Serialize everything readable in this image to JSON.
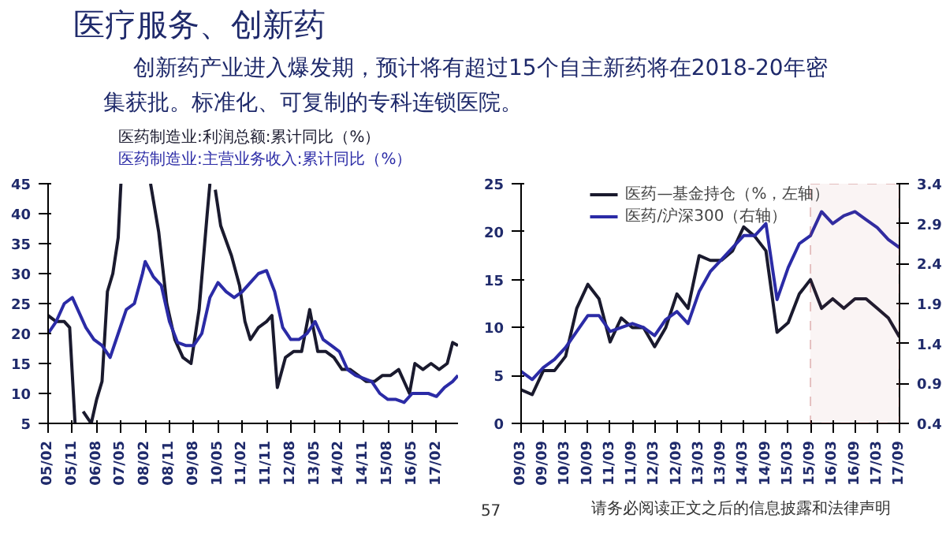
{
  "chart_data": [
    {
      "type": "other",
      "title": "医疗服务、创新药",
      "annotations": [
        "创新药产业进入爆发期，预计将有超过15个自主新药将在2018-20年密集获批。标准化、可复制的专科连锁医院。"
      ]
    },
    {
      "type": "line",
      "legend": "top",
      "grid": false,
      "ylim": [
        5,
        45
      ],
      "yticks": [
        5,
        10,
        15,
        20,
        25,
        30,
        35,
        40,
        45
      ],
      "xlim": [
        "2005-02",
        "2017-10"
      ],
      "xticks": [
        {
          "value": "2005-02",
          "label": "05/02"
        },
        {
          "value": "2005-11",
          "label": "05/11"
        },
        {
          "value": "2006-08",
          "label": "06/08"
        },
        {
          "value": "2007-05",
          "label": "07/05"
        },
        {
          "value": "2008-02",
          "label": "08/02"
        },
        {
          "value": "2008-11",
          "label": "08/11"
        },
        {
          "value": "2009-08",
          "label": "09/08"
        },
        {
          "value": "2010-05",
          "label": "10/05"
        },
        {
          "value": "2011-02",
          "label": "11/02"
        },
        {
          "value": "2011-11",
          "label": "11/11"
        },
        {
          "value": "2012-08",
          "label": "12/08"
        },
        {
          "value": "2013-05",
          "label": "13/05"
        },
        {
          "value": "2014-02",
          "label": "14/02"
        },
        {
          "value": "2014-11",
          "label": "14/11"
        },
        {
          "value": "2015-08",
          "label": "15/08"
        },
        {
          "value": "2016-05",
          "label": "16/05"
        },
        {
          "value": "2017-02",
          "label": "17/02"
        }
      ],
      "series": [
        {
          "name": "医药制造业:利润总额:累计同比（%）",
          "color": "#1a1a2e",
          "x": [
            "2005-02",
            "2005-05",
            "2005-08",
            "2005-10",
            "2005-12",
            "2006-01",
            "2006-03",
            "2006-06",
            "2006-08",
            "2006-10",
            "2006-12",
            "2007-02",
            "2007-04",
            "2007-05",
            "2007-06",
            "2008-03",
            "2008-04",
            "2008-07",
            "2008-10",
            "2009-01",
            "2009-04",
            "2009-07",
            "2009-10",
            "2010-01",
            "2010-02",
            "2010-03",
            "2010-04",
            "2010-06",
            "2010-10",
            "2011-01",
            "2011-03",
            "2011-05",
            "2011-08",
            "2011-11",
            "2012-01",
            "2012-03",
            "2012-06",
            "2012-09",
            "2012-12",
            "2013-03",
            "2013-06",
            "2013-09",
            "2013-12",
            "2014-03",
            "2014-06",
            "2014-09",
            "2014-12",
            "2015-03",
            "2015-06",
            "2015-09",
            "2015-12",
            "2016-04",
            "2016-06",
            "2016-09",
            "2016-12",
            "2017-03",
            "2017-06",
            "2017-08",
            "2017-10"
          ],
          "values": [
            23,
            22,
            22,
            21,
            5,
            null,
            7,
            5,
            9,
            12,
            27,
            30,
            36,
            45,
            null,
            null,
            45,
            37,
            25,
            19,
            16,
            15,
            24,
            40,
            45,
            null,
            44,
            38,
            33,
            28,
            22,
            19,
            21,
            22,
            23,
            11,
            16,
            17,
            17,
            24,
            17,
            17,
            16,
            14,
            14,
            13,
            12,
            12,
            13,
            13,
            14,
            10,
            15,
            14,
            15,
            14,
            15,
            18.5,
            18
          ]
        },
        {
          "name": "医药制造业:主营业务收入:累计同比（%）",
          "color": "#2b2ba6",
          "x": [
            "2005-02",
            "2005-05",
            "2005-08",
            "2005-11",
            "2006-01",
            "2006-04",
            "2006-07",
            "2006-10",
            "2007-01",
            "2007-04",
            "2007-07",
            "2007-10",
            "2008-01",
            "2008-02",
            "2008-05",
            "2008-08",
            "2008-11",
            "2009-02",
            "2009-05",
            "2009-08",
            "2009-11",
            "2010-02",
            "2010-05",
            "2010-08",
            "2010-11",
            "2011-02",
            "2011-05",
            "2011-08",
            "2011-11",
            "2012-02",
            "2012-05",
            "2012-08",
            "2012-11",
            "2013-02",
            "2013-05",
            "2013-08",
            "2013-11",
            "2014-02",
            "2014-05",
            "2014-08",
            "2014-11",
            "2015-02",
            "2015-05",
            "2015-08",
            "2015-11",
            "2016-02",
            "2016-05",
            "2016-08",
            "2016-11",
            "2017-02",
            "2017-05",
            "2017-08",
            "2017-10"
          ],
          "values": [
            20,
            22,
            25,
            26,
            24,
            21,
            19,
            18,
            16,
            20,
            24,
            25,
            30,
            32,
            29.5,
            28,
            22,
            18.5,
            18,
            18,
            20,
            26,
            28.5,
            27,
            26,
            27,
            28.5,
            30,
            30.5,
            27,
            21,
            19,
            19,
            20,
            22,
            19,
            18,
            17,
            14,
            13,
            12.5,
            12,
            10,
            9,
            9,
            8.5,
            10,
            10,
            10,
            9.5,
            11,
            12,
            13
          ]
        }
      ]
    },
    {
      "type": "line",
      "legend": "top",
      "grid": false,
      "ylim": [
        0,
        25
      ],
      "yticks": [
        0,
        5,
        10,
        15,
        20,
        25
      ],
      "y2lim": [
        0.4,
        3.4
      ],
      "y2ticks": [
        0.4,
        0.9,
        1.4,
        1.9,
        2.4,
        2.9,
        3.4
      ],
      "xlim": [
        "2009-03",
        "2017-09"
      ],
      "xticks": [
        {
          "value": "2009-03",
          "label": "09/03"
        },
        {
          "value": "2009-09",
          "label": "09/09"
        },
        {
          "value": "2010-03",
          "label": "10/03"
        },
        {
          "value": "2010-09",
          "label": "10/09"
        },
        {
          "value": "2011-03",
          "label": "11/03"
        },
        {
          "value": "2011-09",
          "label": "11/09"
        },
        {
          "value": "2012-03",
          "label": "12/03"
        },
        {
          "value": "2012-09",
          "label": "12/09"
        },
        {
          "value": "2013-03",
          "label": "13/03"
        },
        {
          "value": "2013-09",
          "label": "13/09"
        },
        {
          "value": "2014-03",
          "label": "14/03"
        },
        {
          "value": "2014-09",
          "label": "14/09"
        },
        {
          "value": "2015-03",
          "label": "15/03"
        },
        {
          "value": "2015-09",
          "label": "15/09"
        },
        {
          "value": "2016-03",
          "label": "16/03"
        },
        {
          "value": "2016-09",
          "label": "16/09"
        },
        {
          "value": "2017-03",
          "label": "17/03"
        },
        {
          "value": "2017-09",
          "label": "17/09"
        }
      ],
      "bands": [
        {
          "axis": "x",
          "from": "2015-09",
          "to": "2017-09",
          "color": "#b04040"
        }
      ],
      "series": [
        {
          "name": "医药—基金持仓（%，左轴）",
          "color": "#1a1a2e",
          "x": [
            "2009-03",
            "2009-06",
            "2009-09",
            "2009-12",
            "2010-03",
            "2010-06",
            "2010-09",
            "2010-12",
            "2011-03",
            "2011-06",
            "2011-09",
            "2011-12",
            "2012-03",
            "2012-06",
            "2012-09",
            "2012-12",
            "2013-03",
            "2013-06",
            "2013-09",
            "2013-12",
            "2014-03",
            "2014-06",
            "2014-09",
            "2014-12",
            "2015-03",
            "2015-06",
            "2015-09",
            "2015-12",
            "2016-03",
            "2016-06",
            "2016-09",
            "2016-12",
            "2017-03",
            "2017-06",
            "2017-09"
          ],
          "values": [
            3.5,
            3,
            5.5,
            5.5,
            7,
            12,
            14.5,
            13,
            8.5,
            11,
            10,
            10,
            8,
            10,
            13.5,
            12,
            17.5,
            17,
            17,
            18,
            20.5,
            19.5,
            18,
            9.5,
            10.5,
            13.5,
            15,
            12,
            13,
            12,
            13,
            13,
            12,
            11,
            9
          ]
        },
        {
          "name": "医药/沪深300（右轴）",
          "color": "#2b2ba6",
          "axis": "y2",
          "x": [
            "2009-03",
            "2009-06",
            "2009-09",
            "2009-12",
            "2010-03",
            "2010-06",
            "2010-09",
            "2010-12",
            "2011-03",
            "2011-06",
            "2011-09",
            "2011-12",
            "2012-03",
            "2012-06",
            "2012-09",
            "2012-12",
            "2013-03",
            "2013-06",
            "2013-09",
            "2013-12",
            "2014-03",
            "2014-06",
            "2014-09",
            "2014-12",
            "2015-03",
            "2015-06",
            "2015-09",
            "2015-12",
            "2016-03",
            "2016-06",
            "2016-09",
            "2016-12",
            "2017-03",
            "2017-06",
            "2017-09"
          ],
          "values": [
            1.05,
            0.95,
            1.1,
            1.2,
            1.35,
            1.55,
            1.75,
            1.75,
            1.55,
            1.6,
            1.65,
            1.6,
            1.5,
            1.7,
            1.8,
            1.65,
            2.05,
            2.3,
            2.45,
            2.6,
            2.75,
            2.75,
            2.9,
            1.95,
            2.35,
            2.65,
            2.75,
            3.05,
            2.9,
            3.0,
            3.05,
            2.95,
            2.85,
            2.7,
            2.6
          ]
        }
      ]
    },
    {
      "type": "other",
      "annotations": [
        "57",
        "请务必阅读正文之后的信息披露和法律声明"
      ]
    }
  ]
}
